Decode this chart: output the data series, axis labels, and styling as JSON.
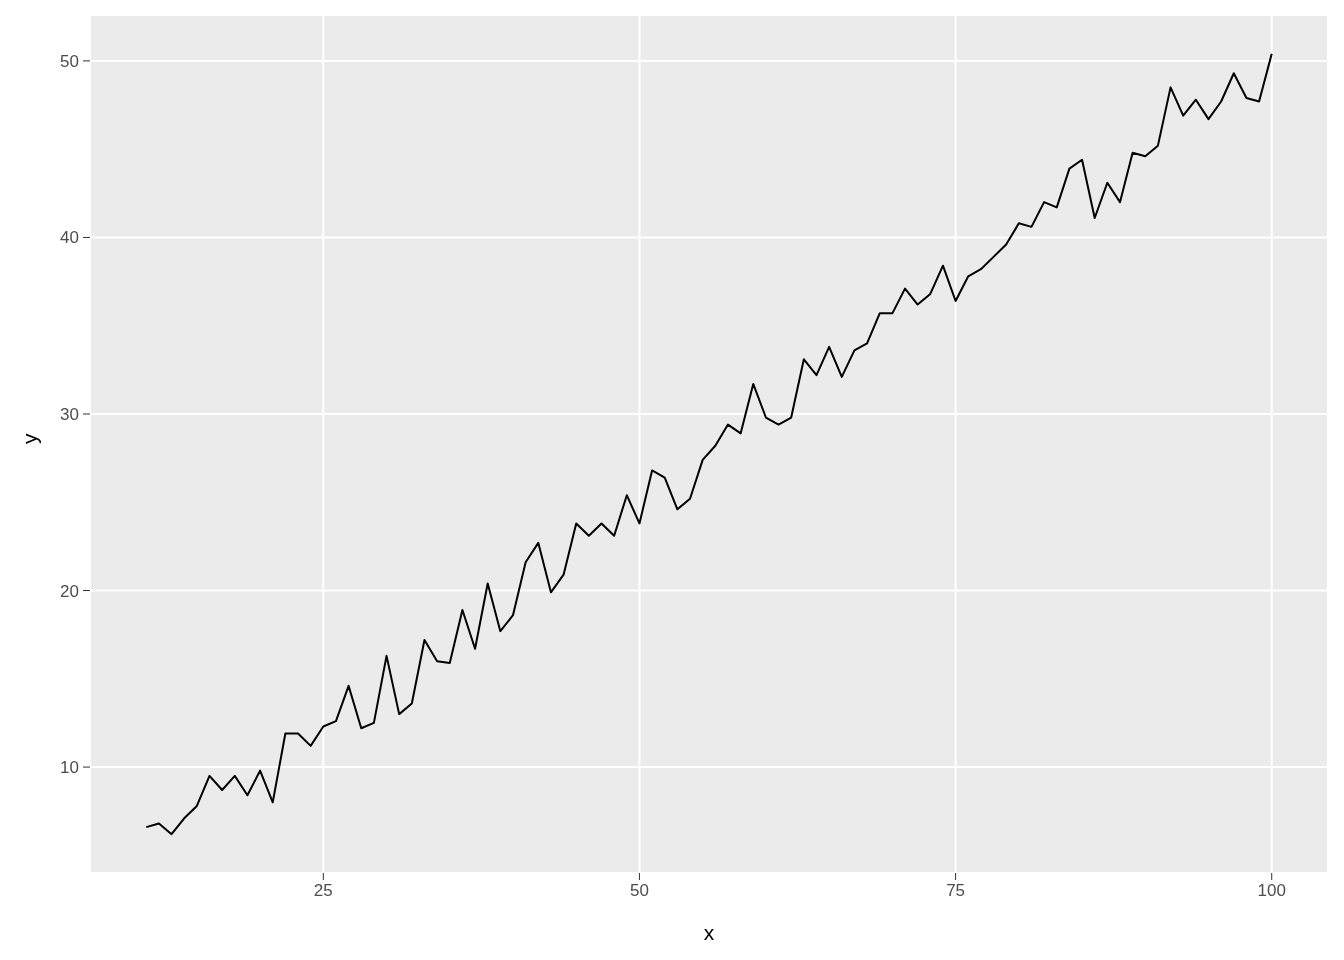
{
  "chart_data": {
    "type": "line",
    "xlabel": "x",
    "ylabel": "y",
    "x": [
      11,
      12,
      13,
      14,
      15,
      16,
      17,
      18,
      19,
      20,
      21,
      22,
      23,
      24,
      25,
      26,
      27,
      28,
      29,
      30,
      31,
      32,
      33,
      34,
      35,
      36,
      37,
      38,
      39,
      40,
      41,
      42,
      43,
      44,
      45,
      46,
      47,
      48,
      49,
      50,
      51,
      52,
      53,
      54,
      55,
      56,
      57,
      58,
      59,
      60,
      61,
      62,
      63,
      64,
      65,
      66,
      67,
      68,
      69,
      70,
      71,
      72,
      73,
      74,
      75,
      76,
      77,
      78,
      79,
      80,
      81,
      82,
      83,
      84,
      85,
      86,
      87,
      88,
      89,
      90,
      91,
      92,
      93,
      94,
      95,
      96,
      97,
      98,
      99,
      100
    ],
    "values": [
      6.6,
      6.8,
      6.2,
      7.1,
      7.8,
      9.5,
      8.7,
      9.5,
      8.4,
      9.8,
      8.0,
      11.9,
      11.9,
      11.2,
      12.3,
      12.6,
      14.6,
      12.2,
      12.5,
      16.3,
      13.0,
      13.6,
      17.2,
      16.0,
      15.9,
      18.9,
      16.7,
      20.4,
      17.7,
      18.6,
      21.6,
      22.7,
      19.9,
      20.9,
      23.8,
      23.1,
      23.8,
      23.1,
      25.4,
      23.8,
      26.8,
      26.4,
      24.6,
      25.2,
      27.4,
      28.2,
      29.4,
      28.9,
      31.7,
      29.8,
      29.4,
      29.8,
      33.1,
      32.2,
      33.8,
      32.1,
      33.6,
      34.0,
      35.7,
      35.7,
      37.1,
      36.2,
      36.8,
      38.4,
      36.4,
      37.8,
      38.2,
      38.9,
      39.6,
      40.8,
      40.6,
      42.0,
      41.7,
      43.9,
      44.4,
      41.1,
      43.1,
      42.0,
      44.8,
      44.6,
      45.2,
      48.5,
      46.9,
      47.8,
      46.7,
      47.7,
      49.3,
      47.9,
      47.7,
      50.4
    ],
    "color": "#000000",
    "line_style": "solid",
    "xlim": [
      6.55,
      104.45
    ],
    "ylim": [
      4.0,
      52.6
    ],
    "xticks": [
      25,
      50,
      75,
      100
    ],
    "yticks": [
      10,
      20,
      30,
      40,
      50
    ],
    "grid": true
  }
}
